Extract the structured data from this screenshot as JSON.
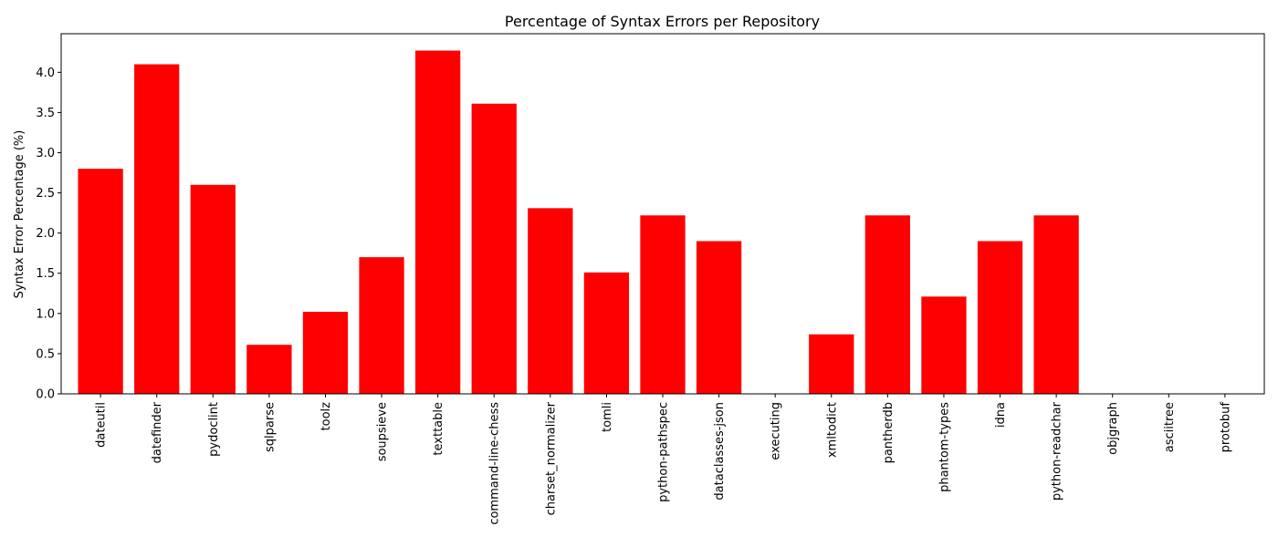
{
  "colors": {
    "bar": "#ff0000",
    "axes": "#000000",
    "background": "#ffffff"
  },
  "chart_data": {
    "type": "bar",
    "title": "Percentage of Syntax Errors per Repository",
    "xlabel": "",
    "ylabel": "Syntax Error Percentage (%)",
    "ylim": [
      0,
      4.48
    ],
    "yticks": [
      0.0,
      0.5,
      1.0,
      1.5,
      2.0,
      2.5,
      3.0,
      3.5,
      4.0
    ],
    "ytick_labels": [
      "0.0",
      "0.5",
      "1.0",
      "1.5",
      "2.0",
      "2.5",
      "3.0",
      "3.5",
      "4.0"
    ],
    "grid": false,
    "legend": "none",
    "categories": [
      "dateutil",
      "datefinder",
      "pydoclint",
      "sqlparse",
      "toolz",
      "soupsieve",
      "texttable",
      "command-line-chess",
      "charset_normalizer",
      "tomli",
      "python-pathspec",
      "dataclasses-json",
      "executing",
      "xmltodict",
      "pantherdb",
      "phantom-types",
      "idna",
      "python-readchar",
      "objgraph",
      "asciitree",
      "protobuf"
    ],
    "values": [
      2.8,
      4.1,
      2.6,
      0.61,
      1.02,
      1.7,
      4.27,
      3.61,
      2.31,
      1.51,
      2.22,
      1.9,
      0.0,
      0.74,
      2.22,
      1.21,
      1.9,
      2.22,
      0.0,
      0.0,
      0.0
    ]
  }
}
